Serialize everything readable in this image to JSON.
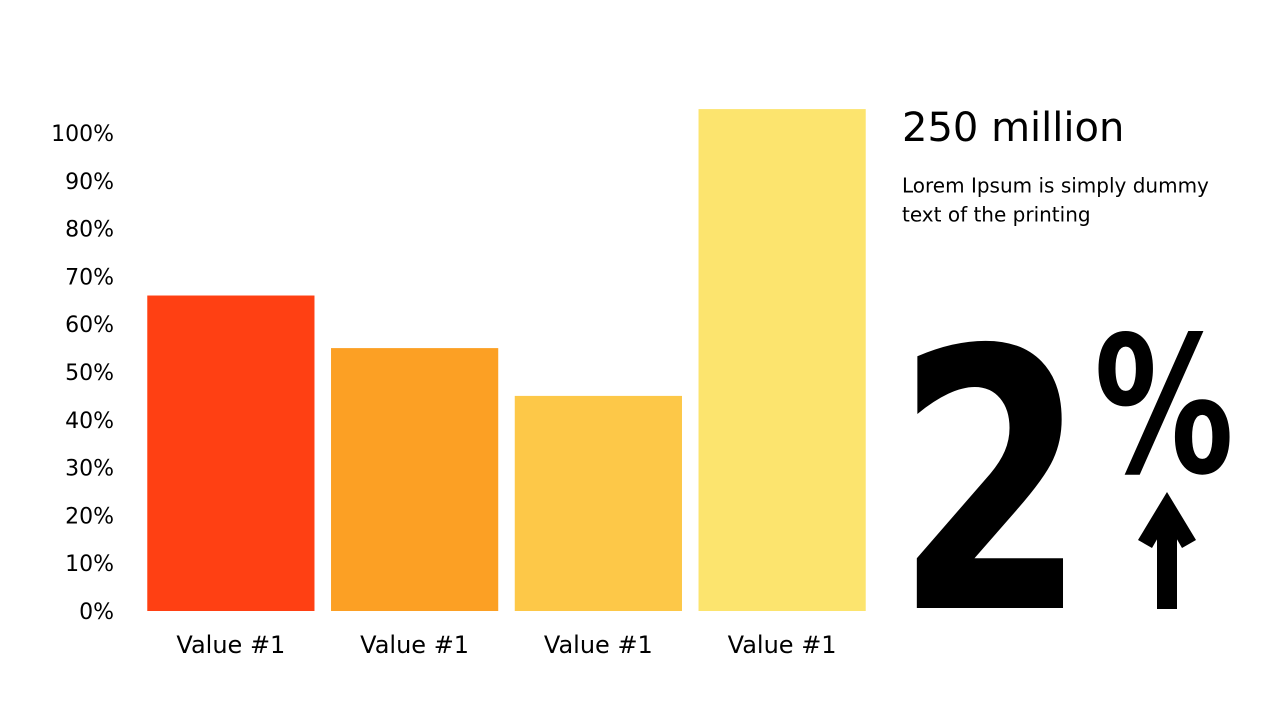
{
  "chart_data": {
    "type": "bar",
    "categories": [
      "Value #1",
      "Value #1",
      "Value #1",
      "Value #1"
    ],
    "values": [
      66,
      55,
      45,
      105
    ],
    "colors": [
      "#ff4013",
      "#fca024",
      "#fdc848",
      "#fce46e"
    ],
    "ylim": [
      0,
      100
    ],
    "yticks": [
      {
        "value": 0,
        "label": "0%"
      },
      {
        "value": 10,
        "label": "10%"
      },
      {
        "value": 20,
        "label": "20%"
      },
      {
        "value": 30,
        "label": "30%"
      },
      {
        "value": 40,
        "label": "40%"
      },
      {
        "value": 50,
        "label": "50%"
      },
      {
        "value": 60,
        "label": "60%"
      },
      {
        "value": 70,
        "label": "70%"
      },
      {
        "value": 80,
        "label": "80%"
      },
      {
        "value": 90,
        "label": "90%"
      },
      {
        "value": 100,
        "label": "100%"
      }
    ],
    "grid": false,
    "annotations": {
      "headline": "250 million",
      "body_line1": "Lorem Ipsum is simply dummy",
      "body_line2": "text of the printing",
      "big_number": "2",
      "big_unit": "%"
    }
  }
}
